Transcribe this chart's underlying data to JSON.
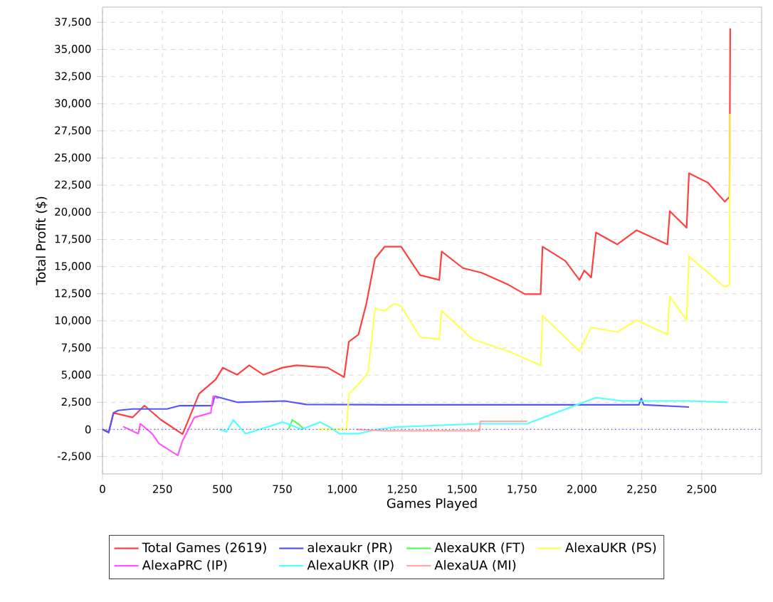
{
  "chart_data": {
    "type": "line",
    "xlabel": "Games Played",
    "ylabel": "Total Profit ($)",
    "xlim": [
      0,
      2750
    ],
    "ylim": [
      -4100,
      38900
    ],
    "xticks": [
      0,
      250,
      500,
      750,
      {
        "value": 1000,
        "label": "1,000"
      },
      {
        "value": 1250,
        "label": "1,250"
      },
      {
        "value": 1500,
        "label": "1,500"
      },
      {
        "value": 1750,
        "label": "1,750"
      },
      {
        "value": 2000,
        "label": "2,000"
      },
      {
        "value": 2250,
        "label": "2,250"
      },
      {
        "value": 2500,
        "label": "2,500"
      }
    ],
    "yticks": [
      {
        "value": -2500,
        "label": "-2,500"
      },
      0,
      {
        "value": 2500,
        "label": "2,500"
      },
      {
        "value": 5000,
        "label": "5,000"
      },
      {
        "value": 7500,
        "label": "7,500"
      },
      {
        "value": 10000,
        "label": "10,000"
      },
      {
        "value": 12500,
        "label": "12,500"
      },
      {
        "value": 15000,
        "label": "15,000"
      },
      {
        "value": 17500,
        "label": "17,500"
      },
      {
        "value": 20000,
        "label": "20,000"
      },
      {
        "value": 22500,
        "label": "22,500"
      },
      {
        "value": 25000,
        "label": "25,000"
      },
      {
        "value": 27500,
        "label": "27,500"
      },
      {
        "value": 30000,
        "label": "30,000"
      },
      {
        "value": 32500,
        "label": "32,500"
      },
      {
        "value": 35000,
        "label": "35,000"
      },
      {
        "value": 37500,
        "label": "37,500"
      }
    ],
    "grid": true,
    "legend": "bottom",
    "marker": "none",
    "line_style": "solid",
    "ref_lines": [
      {
        "axis": "y",
        "value": 0,
        "color": "#4444ff",
        "line_style": "dotted"
      }
    ],
    "series": [
      {
        "name": "Total Games (2619)",
        "color": "#ff4040",
        "x": [
          0,
          26,
          46,
          125,
          175,
          244,
          334,
          363,
          403,
          472,
          502,
          562,
          612,
          671,
          751,
          810,
          939,
          1008,
          1028,
          1068,
          1101,
          1137,
          1177,
          1246,
          1325,
          1405,
          1415,
          1504,
          1583,
          1693,
          1762,
          1828,
          1836,
          1931,
          1990,
          2010,
          2039,
          2059,
          2148,
          2228,
          2357,
          2367,
          2437,
          2447,
          2526,
          2596,
          2616,
          2619
        ],
        "values": [
          0,
          -210,
          1530,
          1100,
          2190,
          880,
          -430,
          1100,
          3280,
          4590,
          5690,
          5030,
          5900,
          5030,
          5690,
          5900,
          5690,
          4810,
          8090,
          8740,
          11590,
          15730,
          16830,
          16830,
          14210,
          13770,
          16390,
          14860,
          14420,
          13330,
          12460,
          12460,
          16830,
          15520,
          13770,
          14640,
          14000,
          18140,
          17040,
          18350,
          17040,
          20110,
          18580,
          23600,
          22730,
          20980,
          21410,
          36930
        ]
      },
      {
        "name": "alexaukr (PR)",
        "color": "#5555ff",
        "x": [
          0,
          26,
          46,
          66,
          125,
          268,
          323,
          458,
          468,
          562,
          760,
          850,
          1177,
          2238,
          2248,
          2258,
          2447
        ],
        "values": [
          0,
          -300,
          1530,
          1750,
          1880,
          1880,
          2190,
          2190,
          3060,
          2500,
          2620,
          2300,
          2270,
          2270,
          2850,
          2270,
          2060
        ]
      },
      {
        "name": "AlexaUKR (FT)",
        "color": "#55ff55",
        "x": [
          776,
          792,
          821,
          841
        ],
        "values": [
          0,
          870,
          440,
          0
        ]
      },
      {
        "name": "AlexaUKR (PS)",
        "color": "#ffff55",
        "x": [
          900,
          1018,
          1028,
          1068,
          1108,
          1137,
          1177,
          1216,
          1246,
          1325,
          1405,
          1415,
          1544,
          1693,
          1828,
          1836,
          1990,
          2039,
          2148,
          2228,
          2357,
          2367,
          2437,
          2447,
          2596,
          2616,
          2618
        ],
        "values": [
          0,
          0,
          3280,
          4150,
          5240,
          11140,
          10920,
          11580,
          11370,
          8520,
          8300,
          10930,
          8300,
          7210,
          5900,
          10490,
          7210,
          9400,
          8960,
          10060,
          8740,
          12240,
          10060,
          15950,
          13110,
          13330,
          29060
        ]
      },
      {
        "name": "AlexaPRC (IP)",
        "color": "#ff55ff",
        "x": [
          86,
          149,
          158,
          207,
          236,
          314,
          333,
          383,
          452,
          462,
          483
        ],
        "values": [
          260,
          -390,
          520,
          -390,
          -1310,
          -2400,
          -1100,
          1100,
          1530,
          3060,
          2840
        ]
      },
      {
        "name": "AlexaUKR (IP)",
        "color": "#55ffff",
        "x": [
          488,
          517,
          546,
          597,
          656,
          750,
          784,
          829,
          908,
          948,
          988,
          1068,
          1147,
          1226,
          1573,
          1772,
          1812,
          2059,
          2168,
          2447,
          2606
        ],
        "values": [
          0,
          -220,
          870,
          -390,
          0,
          660,
          440,
          0,
          660,
          220,
          -390,
          -390,
          0,
          220,
          520,
          520,
          870,
          2930,
          2620,
          2620,
          2500
        ]
      },
      {
        "name": "AlexaUA (MI)",
        "color": "#ffaaaa",
        "x": [
          1058,
          1177,
          1573,
          1577,
          1772
        ],
        "values": [
          0,
          -130,
          -130,
          740,
          740
        ]
      }
    ]
  }
}
